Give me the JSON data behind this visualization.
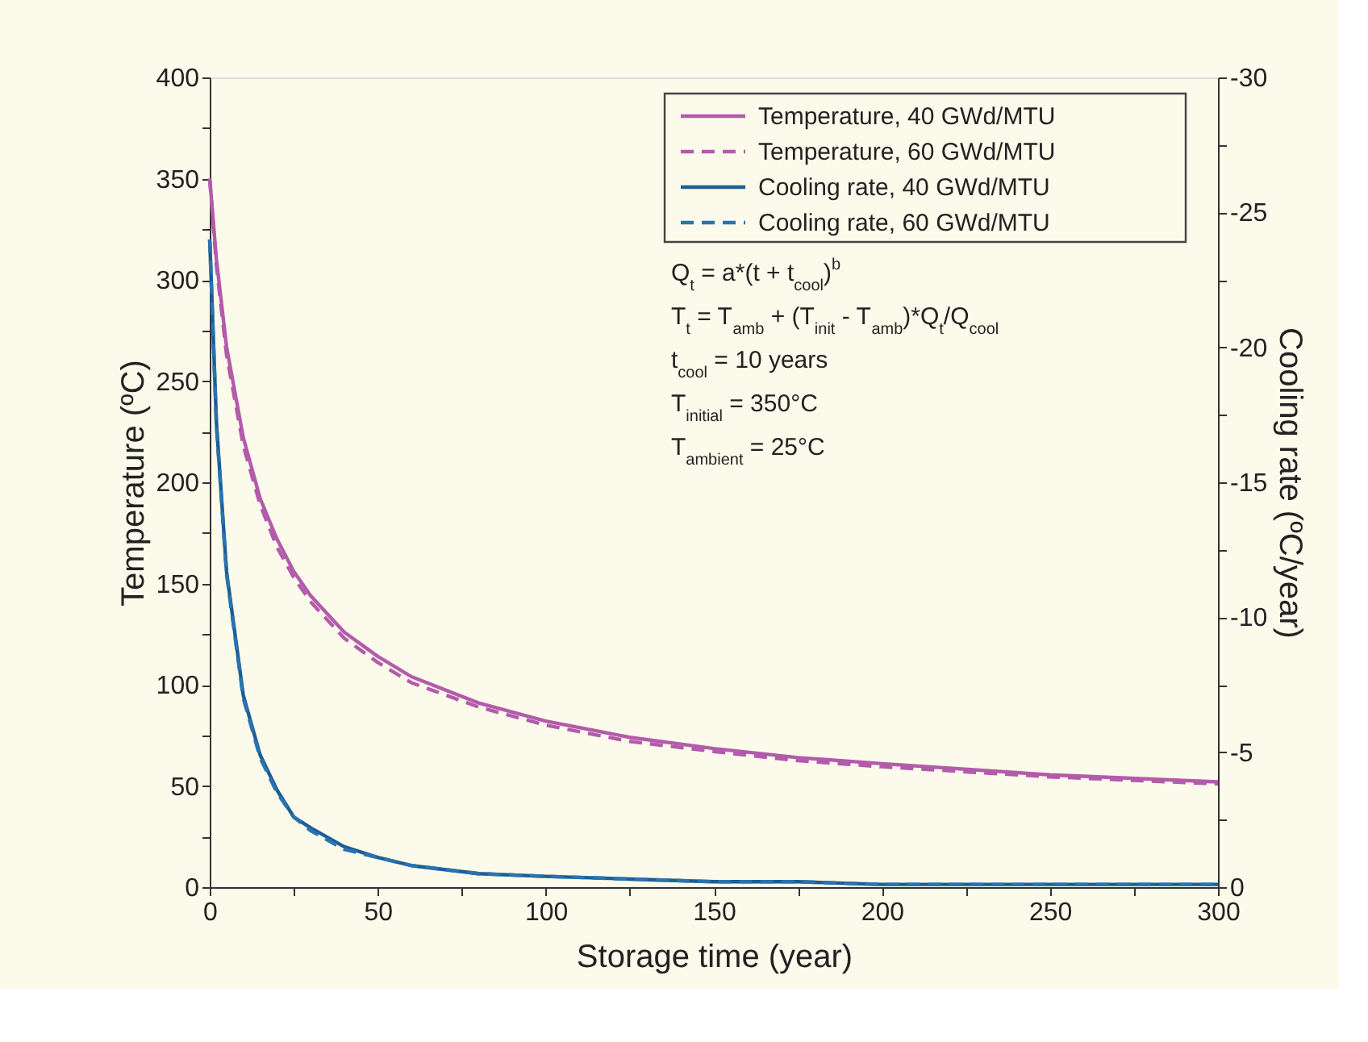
{
  "chart_data": {
    "type": "line",
    "xlabel": "Storage time (year)",
    "ylabel": "Temperature (ºC)",
    "y2label": "Cooling rate (ºC/year)",
    "x": [
      0,
      2,
      5,
      10,
      15,
      20,
      25,
      30,
      40,
      50,
      60,
      80,
      100,
      125,
      150,
      175,
      200,
      250,
      300
    ],
    "series": [
      {
        "name": "Temperature, 40 GWd/MTU",
        "color": "#b35bab",
        "line_style": "solid",
        "values": [
          350,
          310,
          267,
          222,
          192,
          172,
          156,
          144,
          126,
          114,
          104,
          91,
          82,
          74,
          68.5,
          64,
          61,
          55.5,
          52
        ]
      },
      {
        "name": "Temperature, 60 GWd/MTU",
        "color": "#b35bab",
        "line_style": "dashed",
        "values": [
          350,
          307,
          263,
          218,
          189,
          168,
          153,
          141,
          123,
          111,
          101,
          89,
          80,
          72,
          67,
          62.5,
          59.5,
          54.5,
          51
        ]
      },
      {
        "name": "Cooling rate, 40 GWd/MTU",
        "color": "#1a5e96",
        "line_style": "solid",
        "axis": "y2",
        "values": [
          -24,
          -17.2,
          -11.7,
          -7.1,
          -4.9,
          -3.6,
          -2.6,
          -2.2,
          -1.5,
          -1.1,
          -0.8,
          -0.5,
          -0.4,
          -0.3,
          -0.2,
          -0.2,
          -0.1,
          -0.1,
          -0.1
        ]
      },
      {
        "name": "Cooling rate, 60 GWd/MTU",
        "color": "#2a72b0",
        "line_style": "dashed",
        "axis": "y2",
        "values": [
          -24,
          -17.1,
          -11.6,
          -7.0,
          -4.8,
          -3.5,
          -2.6,
          -2.1,
          -1.4,
          -1.1,
          -0.8,
          -0.5,
          -0.4,
          -0.3,
          -0.2,
          -0.2,
          -0.1,
          -0.1,
          -0.1
        ]
      }
    ],
    "xlim": [
      0,
      300
    ],
    "xticks": [
      0,
      {
        "value": 25,
        "label": null
      },
      50,
      {
        "value": 75,
        "label": null
      },
      100,
      {
        "value": 125,
        "label": null
      },
      150,
      {
        "value": 175,
        "label": null
      },
      200,
      {
        "value": 225,
        "label": null
      },
      250,
      {
        "value": 275,
        "label": null
      },
      300
    ],
    "ylim": [
      0,
      400
    ],
    "yticks": [
      0,
      {
        "value": 25,
        "label": null
      },
      50,
      {
        "value": 75,
        "label": null
      },
      100,
      {
        "value": 125,
        "label": null
      },
      150,
      {
        "value": 175,
        "label": null
      },
      200,
      {
        "value": 225,
        "label": null
      },
      250,
      {
        "value": 275,
        "label": null
      },
      300,
      {
        "value": 325,
        "label": null
      },
      350,
      {
        "value": 375,
        "label": null
      },
      400
    ],
    "y2lim": [
      0,
      -30
    ],
    "y2ticks": [
      0,
      {
        "value": -2.5,
        "label": null
      },
      -5,
      {
        "value": -7.5,
        "label": null
      },
      -10,
      {
        "value": -12.5,
        "label": null
      },
      -15,
      {
        "value": -17.5,
        "label": null
      },
      -20,
      {
        "value": -22.5,
        "label": null
      },
      -25,
      {
        "value": -27.5,
        "label": null
      },
      -30
    ],
    "annotations": [
      "Q$_{t}$ = a*(t + t$_{cool}$)$^{b}$",
      "T$_{t}$ = T$_{amb}$ + (T$_{init}$ - T$_{amb}$)*Q$_{t}$/Q$_{cool}$",
      "t$_{cool}$ = 10 years",
      "T$_{initial}$ = 350°C",
      "T$_{ambient}$ = 25°C"
    ],
    "legend": "top right",
    "grid": false,
    "marker": "none"
  }
}
